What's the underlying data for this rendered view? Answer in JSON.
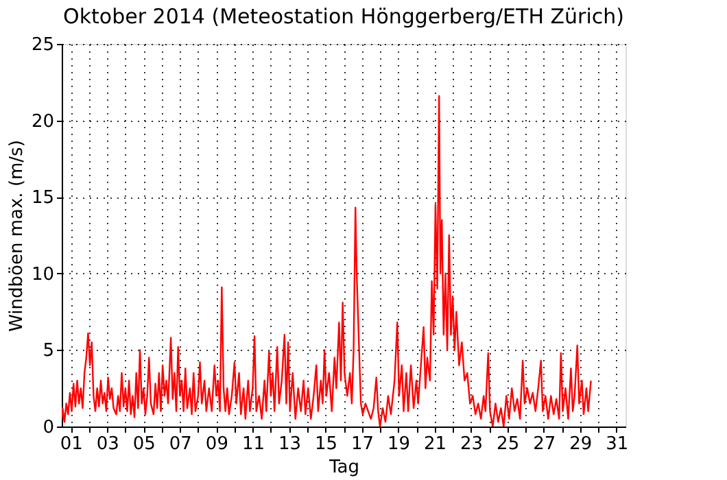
{
  "chart_data": {
    "type": "line",
    "title": "Oktober 2014  (Meteostation Hönggerberg/ETH Zürich)",
    "xlabel": "Tag",
    "ylabel": "Windböen max. (m/s)",
    "color": "#ff0000",
    "line_style": "solid",
    "grid": true,
    "xlim": [
      0.5,
      31.5
    ],
    "xticks": [
      {
        "value": 1,
        "label": "01"
      },
      {
        "value": 2,
        "label": null
      },
      {
        "value": 3,
        "label": "03"
      },
      {
        "value": 4,
        "label": null
      },
      {
        "value": 5,
        "label": "05"
      },
      {
        "value": 6,
        "label": null
      },
      {
        "value": 7,
        "label": "07"
      },
      {
        "value": 8,
        "label": null
      },
      {
        "value": 9,
        "label": "09"
      },
      {
        "value": 10,
        "label": null
      },
      {
        "value": 11,
        "label": "11"
      },
      {
        "value": 12,
        "label": null
      },
      {
        "value": 13,
        "label": "13"
      },
      {
        "value": 14,
        "label": null
      },
      {
        "value": 15,
        "label": "15"
      },
      {
        "value": 16,
        "label": null
      },
      {
        "value": 17,
        "label": "17"
      },
      {
        "value": 18,
        "label": null
      },
      {
        "value": 19,
        "label": "19"
      },
      {
        "value": 20,
        "label": null
      },
      {
        "value": 21,
        "label": "21"
      },
      {
        "value": 22,
        "label": null
      },
      {
        "value": 23,
        "label": "23"
      },
      {
        "value": 24,
        "label": null
      },
      {
        "value": 25,
        "label": "25"
      },
      {
        "value": 26,
        "label": null
      },
      {
        "value": 27,
        "label": "27"
      },
      {
        "value": 28,
        "label": null
      },
      {
        "value": 29,
        "label": "29"
      },
      {
        "value": 30,
        "label": null
      },
      {
        "value": 31,
        "label": "31"
      }
    ],
    "ylim": [
      0,
      25
    ],
    "yticks": [
      0,
      5,
      10,
      15,
      20,
      25
    ],
    "x": [
      0.5,
      0.55,
      0.65,
      0.75,
      0.85,
      0.95,
      1.05,
      1.15,
      1.25,
      1.35,
      1.45,
      1.55,
      1.65,
      1.75,
      1.85,
      1.95,
      2.05,
      2.15,
      2.25,
      2.35,
      2.45,
      2.55,
      2.65,
      2.75,
      2.85,
      2.95,
      3.05,
      3.15,
      3.25,
      3.35,
      3.5,
      3.6,
      3.7,
      3.8,
      3.9,
      4.0,
      4.1,
      4.2,
      4.3,
      4.4,
      4.5,
      4.6,
      4.7,
      4.8,
      4.9,
      5.0,
      5.1,
      5.2,
      5.3,
      5.4,
      5.55,
      5.65,
      5.75,
      5.85,
      5.95,
      6.05,
      6.15,
      6.25,
      6.35,
      6.5,
      6.6,
      6.7,
      6.8,
      6.9,
      7.0,
      7.1,
      7.2,
      7.3,
      7.4,
      7.55,
      7.65,
      7.75,
      7.85,
      8.0,
      8.1,
      8.2,
      8.35,
      8.45,
      8.6,
      8.75,
      8.9,
      9.0,
      9.1,
      9.2,
      9.3,
      9.4,
      9.5,
      9.6,
      9.7,
      9.85,
      10.0,
      10.1,
      10.25,
      10.35,
      10.5,
      10.6,
      10.75,
      10.85,
      11.0,
      11.1,
      11.2,
      11.35,
      11.5,
      11.65,
      11.75,
      11.9,
      12.0,
      12.1,
      12.2,
      12.35,
      12.45,
      12.6,
      12.75,
      12.85,
      12.95,
      13.05,
      13.2,
      13.35,
      13.5,
      13.65,
      13.8,
      13.9,
      14.05,
      14.2,
      14.35,
      14.5,
      14.6,
      14.75,
      14.85,
      14.95,
      15.05,
      15.2,
      15.35,
      15.5,
      15.6,
      15.75,
      15.85,
      15.95,
      16.05,
      16.2,
      16.35,
      16.45,
      16.55,
      16.65,
      16.72,
      16.8,
      16.88,
      16.95,
      17.05,
      17.2,
      17.35,
      17.5,
      17.65,
      17.8,
      17.9,
      18.0,
      18.15,
      18.3,
      18.45,
      18.6,
      18.8,
      18.95,
      19.05,
      19.2,
      19.3,
      19.45,
      19.55,
      19.7,
      19.85,
      20.0,
      20.1,
      20.25,
      20.4,
      20.5,
      20.6,
      20.75,
      20.85,
      20.95,
      21.05,
      21.15,
      21.25,
      21.32,
      21.4,
      21.5,
      21.6,
      21.7,
      21.8,
      21.9,
      22.0,
      22.1,
      22.2,
      22.35,
      22.5,
      22.65,
      22.8,
      22.95,
      23.1,
      23.25,
      23.4,
      23.55,
      23.7,
      23.8,
      23.95,
      24.05,
      24.2,
      24.35,
      24.5,
      24.65,
      24.8,
      24.95,
      25.1,
      25.25,
      25.4,
      25.55,
      25.7,
      25.85,
      25.95,
      26.1,
      26.25,
      26.4,
      26.55,
      26.7,
      26.85,
      26.95,
      27.1,
      27.25,
      27.4,
      27.55,
      27.7,
      27.85,
      27.95,
      28.05,
      28.2,
      28.35,
      28.5,
      28.6,
      28.7,
      28.85,
      28.95,
      29.1,
      29.2,
      29.35,
      29.45,
      29.6
    ],
    "values": [
      0.5,
      1.2,
      0.3,
      1.5,
      0.8,
      2.2,
      1.0,
      2.8,
      1.3,
      3.0,
      1.5,
      2.5,
      1.2,
      3.5,
      4.5,
      6.1,
      4.0,
      5.5,
      2.0,
      1.0,
      2.5,
      1.3,
      3.0,
      1.5,
      2.2,
      1.0,
      3.2,
      1.8,
      2.5,
      1.2,
      0.8,
      2.0,
      1.0,
      3.5,
      1.3,
      2.5,
      1.0,
      3.0,
      0.8,
      2.0,
      0.6,
      3.5,
      1.2,
      5.0,
      1.5,
      2.5,
      0.8,
      2.0,
      4.5,
      1.5,
      0.8,
      2.8,
      1.2,
      3.5,
      1.0,
      4.0,
      2.0,
      3.0,
      1.5,
      5.8,
      1.8,
      3.5,
      1.0,
      5.2,
      2.0,
      3.0,
      1.0,
      3.8,
      1.2,
      2.5,
      0.8,
      3.5,
      1.0,
      2.0,
      4.2,
      1.5,
      3.0,
      1.0,
      2.5,
      1.0,
      4.0,
      2.0,
      3.0,
      1.0,
      9.1,
      2.5,
      1.0,
      2.5,
      0.8,
      2.0,
      4.2,
      1.5,
      3.5,
      0.8,
      2.5,
      0.5,
      3.0,
      1.0,
      2.5,
      5.9,
      1.0,
      2.0,
      0.5,
      3.0,
      1.0,
      4.9,
      2.0,
      3.5,
      1.0,
      5.2,
      1.5,
      3.0,
      6.0,
      1.5,
      5.5,
      1.0,
      3.5,
      0.5,
      2.5,
      1.0,
      3.0,
      0.8,
      2.5,
      0.5,
      2.0,
      4.0,
      1.0,
      3.0,
      1.5,
      5.0,
      2.0,
      3.5,
      1.0,
      4.5,
      2.5,
      6.8,
      3.0,
      8.1,
      3.5,
      2.0,
      3.5,
      1.5,
      5.0,
      14.3,
      10.0,
      7.0,
      4.0,
      1.5,
      0.8,
      1.5,
      1.0,
      0.5,
      1.2,
      3.2,
      1.0,
      0.0,
      1.2,
      0.3,
      2.0,
      0.8,
      3.0,
      6.8,
      2.0,
      4.0,
      1.0,
      3.5,
      1.0,
      4.0,
      1.2,
      3.0,
      1.5,
      4.0,
      6.5,
      2.5,
      4.5,
      3.0,
      9.5,
      6.0,
      14.5,
      9.0,
      21.6,
      10.0,
      13.5,
      6.0,
      10.0,
      5.0,
      12.5,
      6.0,
      8.5,
      5.0,
      7.5,
      4.0,
      5.5,
      3.0,
      3.5,
      1.5,
      2.0,
      0.8,
      1.5,
      0.5,
      2.0,
      1.0,
      4.8,
      1.0,
      0.0,
      1.5,
      0.3,
      1.2,
      0.0,
      2.0,
      0.5,
      2.5,
      1.0,
      1.8,
      0.5,
      4.3,
      1.5,
      2.5,
      1.5,
      2.2,
      1.0,
      2.5,
      4.3,
      1.0,
      2.0,
      0.5,
      2.0,
      0.8,
      1.8,
      0.5,
      4.8,
      1.0,
      2.5,
      0.5,
      3.8,
      1.0,
      2.0,
      5.3,
      1.5,
      3.0,
      0.8,
      2.5,
      1.0,
      3.0
    ]
  }
}
